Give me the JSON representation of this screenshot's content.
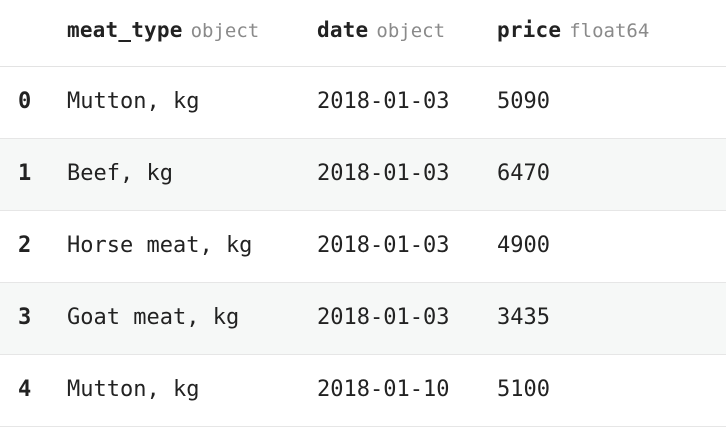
{
  "table": {
    "columns": [
      {
        "name": "meat_type",
        "dtype": "object"
      },
      {
        "name": "date",
        "dtype": "object"
      },
      {
        "name": "price",
        "dtype": "float64"
      }
    ],
    "rows": [
      {
        "index": "0",
        "meat_type": "Mutton, kg",
        "date": "2018-01-03",
        "price": "5090"
      },
      {
        "index": "1",
        "meat_type": "Beef, kg",
        "date": "2018-01-03",
        "price": "6470"
      },
      {
        "index": "2",
        "meat_type": "Horse meat, kg",
        "date": "2018-01-03",
        "price": "4900"
      },
      {
        "index": "3",
        "meat_type": "Goat meat, kg",
        "date": "2018-01-03",
        "price": "3435"
      },
      {
        "index": "4",
        "meat_type": "Mutton, kg",
        "date": "2018-01-10",
        "price": "5100"
      }
    ]
  }
}
